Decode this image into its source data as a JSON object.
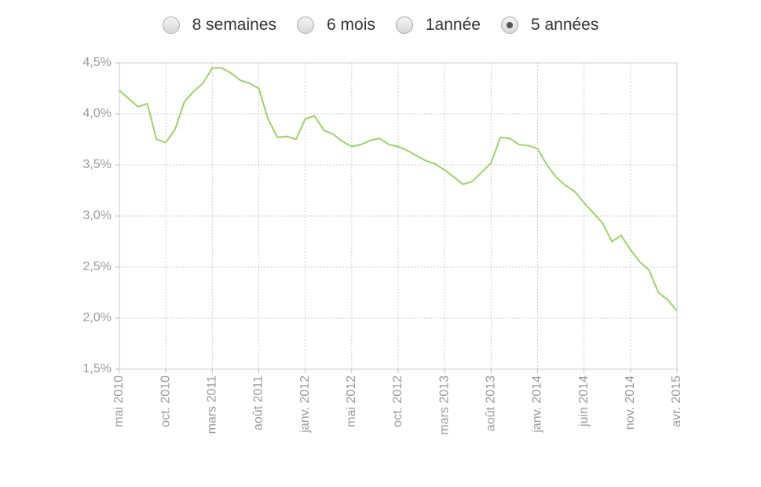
{
  "controls": {
    "options": [
      {
        "label": "8 semaines",
        "checked": false
      },
      {
        "label": "6 mois",
        "checked": false
      },
      {
        "label": "1année",
        "checked": false
      },
      {
        "label": "5 années",
        "checked": true
      }
    ]
  },
  "chart_data": {
    "type": "line",
    "categories": [
      "mai 2010",
      null,
      null,
      null,
      null,
      "oct. 2010",
      null,
      null,
      null,
      null,
      "mars 2011",
      null,
      null,
      null,
      null,
      "août 2011",
      null,
      null,
      null,
      null,
      "janv. 2012",
      null,
      null,
      null,
      null,
      "mai 2012",
      null,
      null,
      null,
      null,
      "oct. 2012",
      null,
      null,
      null,
      null,
      "mars 2013",
      null,
      null,
      null,
      null,
      "août 2013",
      null,
      null,
      null,
      null,
      "janv. 2014",
      null,
      null,
      null,
      null,
      "juin 2014",
      null,
      null,
      null,
      null,
      "nov. 2014",
      null,
      null,
      null,
      null,
      "avr. 2015"
    ],
    "values": [
      4.23,
      4.15,
      4.07,
      4.1,
      3.75,
      3.72,
      3.85,
      4.12,
      4.22,
      4.3,
      4.45,
      4.45,
      4.4,
      4.33,
      4.3,
      4.25,
      3.95,
      3.77,
      3.78,
      3.75,
      3.95,
      3.98,
      3.84,
      3.8,
      3.73,
      3.68,
      3.7,
      3.74,
      3.76,
      3.7,
      3.68,
      3.64,
      3.59,
      3.54,
      3.51,
      3.45,
      3.38,
      3.31,
      3.34,
      3.43,
      3.52,
      3.77,
      3.76,
      3.7,
      3.69,
      3.66,
      3.5,
      3.38,
      3.3,
      3.24,
      3.13,
      3.03,
      2.93,
      2.75,
      2.81,
      2.67,
      2.55,
      2.47,
      2.25,
      2.18,
      2.07
    ],
    "color": "#9ed265",
    "ylim": [
      1.5,
      4.5
    ],
    "yticks": [
      {
        "value": 1.5,
        "label": "1,5%"
      },
      {
        "value": 2,
        "label": "2,0%"
      },
      {
        "value": 2.5,
        "label": "2,5%"
      },
      {
        "value": 3,
        "label": "3,0%"
      },
      {
        "value": 3.5,
        "label": "3,5%"
      },
      {
        "value": 4,
        "label": "4,0%"
      },
      {
        "value": 4.5,
        "label": "4,5%"
      }
    ],
    "grid": true
  }
}
